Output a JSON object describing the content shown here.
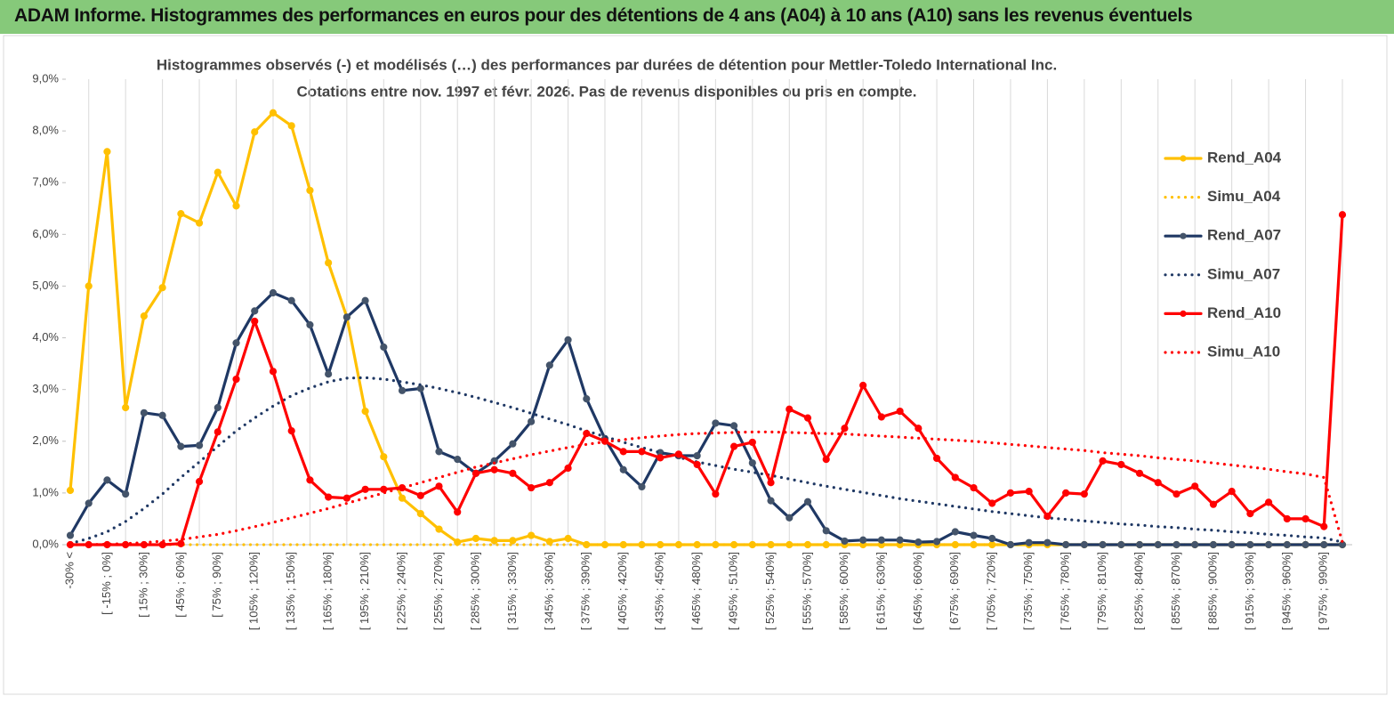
{
  "header": {
    "title": "ADAM Informe. Histogrammes des performances en euros pour des détentions de 4 ans (A04) à 10 ans (A10) sans les revenus éventuels"
  },
  "chart_data": {
    "type": "line",
    "title": "Histogrammes observés (-) et modélisés (…) des performances par durées de détention pour Mettler-Toledo International Inc.",
    "subtitle": "Cotations entre nov. 1997 et févr. 2026. Pas de revenus disponibles ou pris en compte.",
    "categories": [
      "-30% <",
      null,
      "[ -15% ; 0%]",
      null,
      "[ 15% ; 30%]",
      null,
      "[ 45% ; 60%]",
      null,
      "[ 75% ; 90%]",
      null,
      "[ 105% ; 120%]",
      null,
      "[ 135% ; 150%]",
      null,
      "[ 165% ; 180%]",
      null,
      "[ 195% ; 210%]",
      null,
      "[ 225% ; 240%]",
      null,
      "[ 255% ; 270%]",
      null,
      "[ 285% ; 300%]",
      null,
      "[ 315% ; 330%]",
      null,
      "[ 345% ; 360%]",
      null,
      "[ 375% ; 390%]",
      null,
      "[ 405% ; 420%]",
      null,
      "[ 435% ; 450%]",
      null,
      "[ 465% ; 480%]",
      null,
      "[ 495% ; 510%]",
      null,
      "[ 525% ; 540%]",
      null,
      "[ 555% ; 570%]",
      null,
      "[ 585% ; 600%]",
      null,
      "[ 615% ; 630%]",
      null,
      "[ 645% ; 660%]",
      null,
      "[ 675% ; 690%]",
      null,
      "[ 705% ; 720%]",
      null,
      "[ 735% ; 750%]",
      null,
      "[ 765% ; 780%]",
      null,
      "[ 795% ; 810%]",
      null,
      "[ 825% ; 840%]",
      null,
      "[ 855% ; 870%]",
      null,
      "[ 885% ; 900%]",
      null,
      "[ 915% ; 930%]",
      null,
      "[ 945% ; 960%]",
      null,
      "[ 975% ; 990%]",
      null
    ],
    "ylim": [
      0,
      9
    ],
    "yticks": [
      {
        "value": 0,
        "label": "0,0%"
      },
      {
        "value": 1,
        "label": "1,0%"
      },
      {
        "value": 2,
        "label": "2,0%"
      },
      {
        "value": 3,
        "label": "3,0%"
      },
      {
        "value": 4,
        "label": "4,0%"
      },
      {
        "value": 5,
        "label": "5,0%"
      },
      {
        "value": 6,
        "label": "6,0%"
      },
      {
        "value": 7,
        "label": "7,0%"
      },
      {
        "value": 8,
        "label": "8,0%"
      },
      {
        "value": 9,
        "label": "9,0%"
      }
    ],
    "grid": "x",
    "legend": "right",
    "series": [
      {
        "name": "Rend_A04",
        "color": "#ffc000",
        "marker_color": "#ffc000",
        "style": "solid",
        "markers": true,
        "values": [
          1.05,
          5.0,
          7.6,
          2.65,
          4.42,
          4.97,
          6.4,
          6.22,
          7.2,
          6.55,
          7.98,
          8.35,
          8.1,
          6.85,
          5.45,
          4.4,
          2.58,
          1.7,
          0.9,
          0.6,
          0.3,
          0.05,
          0.12,
          0.08,
          0.08,
          0.18,
          0.06,
          0.12,
          0,
          0,
          0,
          0,
          0,
          0,
          0,
          0,
          0,
          0,
          0,
          0,
          0,
          0,
          0,
          0,
          0,
          0,
          0,
          0,
          0,
          0,
          0,
          0,
          0,
          0,
          0,
          0,
          0,
          0,
          0,
          0,
          0,
          0,
          0,
          0,
          0,
          0,
          0,
          0,
          0,
          0
        ]
      },
      {
        "name": "Simu_A04",
        "color": "#ffc000",
        "style": "dotted",
        "markers": false,
        "values": [
          0,
          0,
          0,
          0,
          0,
          0,
          0,
          0,
          0,
          0,
          0,
          0,
          0,
          0,
          0,
          0,
          0,
          0,
          0,
          0,
          0,
          0,
          0,
          0,
          0,
          0,
          0,
          0,
          0,
          0,
          0,
          0,
          0,
          0,
          0,
          0,
          0,
          0,
          0,
          0,
          0,
          0,
          0,
          0,
          0,
          0,
          0,
          0,
          0,
          0,
          0,
          0,
          0,
          0,
          0,
          0,
          0,
          0,
          0,
          0,
          0,
          0,
          0,
          0,
          0,
          0,
          0,
          0,
          0,
          0
        ]
      },
      {
        "name": "Rend_A07",
        "color": "#1f3864",
        "marker_color": "#44546a",
        "style": "solid",
        "markers": true,
        "values": [
          0.18,
          0.8,
          1.25,
          0.98,
          2.55,
          2.5,
          1.9,
          1.92,
          2.65,
          3.9,
          4.52,
          4.87,
          4.72,
          4.25,
          3.3,
          4.4,
          4.72,
          3.82,
          2.98,
          3.02,
          1.8,
          1.65,
          1.38,
          1.62,
          1.95,
          2.38,
          3.47,
          3.96,
          2.82,
          2.05,
          1.45,
          1.12,
          1.78,
          1.72,
          1.72,
          2.35,
          2.3,
          1.58,
          0.85,
          0.52,
          0.83,
          0.27,
          0.07,
          0.09,
          0.09,
          0.09,
          0.05,
          0.06,
          0.25,
          0.18,
          0.12,
          0,
          0.04,
          0.04,
          0,
          0,
          0,
          0,
          0,
          0,
          0,
          0,
          0,
          0,
          0,
          0,
          0,
          0,
          0,
          0
        ]
      },
      {
        "name": "Simu_A07",
        "color": "#1f3864",
        "style": "dotted",
        "markers": false,
        "values": [
          0.02,
          0.12,
          0.25,
          0.45,
          0.7,
          0.98,
          1.3,
          1.6,
          1.9,
          2.2,
          2.45,
          2.68,
          2.88,
          3.03,
          3.15,
          3.22,
          3.23,
          3.2,
          3.15,
          3.09,
          3.02,
          2.94,
          2.85,
          2.75,
          2.65,
          2.54,
          2.43,
          2.32,
          2.2,
          2.09,
          1.98,
          1.88,
          1.78,
          1.69,
          1.6,
          1.53,
          1.46,
          1.4,
          1.34,
          1.27,
          1.2,
          1.13,
          1.07,
          1.01,
          0.95,
          0.89,
          0.84,
          0.79,
          0.74,
          0.69,
          0.64,
          0.6,
          0.56,
          0.52,
          0.49,
          0.46,
          0.43,
          0.4,
          0.38,
          0.35,
          0.33,
          0.3,
          0.28,
          0.25,
          0.23,
          0.2,
          0.18,
          0.15,
          0.13,
          0.05
        ]
      },
      {
        "name": "Rend_A10",
        "color": "#ff0000",
        "marker_color": "#ff0000",
        "style": "solid",
        "markers": true,
        "values": [
          0,
          0,
          0,
          0,
          0,
          0,
          0.02,
          1.22,
          2.18,
          3.2,
          4.32,
          3.35,
          2.2,
          1.25,
          0.92,
          0.9,
          1.07,
          1.07,
          1.1,
          0.95,
          1.13,
          0.63,
          1.38,
          1.45,
          1.38,
          1.1,
          1.2,
          1.48,
          2.15,
          2.0,
          1.8,
          1.8,
          1.68,
          1.75,
          1.55,
          0.98,
          1.9,
          1.98,
          1.2,
          2.62,
          2.45,
          1.65,
          2.25,
          3.08,
          2.47,
          2.58,
          2.25,
          1.67,
          1.3,
          1.1,
          0.8,
          1.0,
          1.03,
          0.55,
          1.0,
          0.98,
          1.62,
          1.55,
          1.38,
          1.2,
          0.98,
          1.13,
          0.78,
          1.03,
          0.6,
          0.82,
          0.5,
          0.5,
          0.35,
          6.38
        ]
      },
      {
        "name": "Simu_A10",
        "color": "#ff0000",
        "style": "dotted",
        "markers": false,
        "values": [
          0,
          0,
          0.01,
          0.02,
          0.04,
          0.07,
          0.1,
          0.15,
          0.2,
          0.27,
          0.35,
          0.43,
          0.52,
          0.61,
          0.7,
          0.8,
          0.9,
          1.0,
          1.1,
          1.2,
          1.3,
          1.4,
          1.5,
          1.58,
          1.66,
          1.74,
          1.81,
          1.88,
          1.94,
          1.99,
          2.03,
          2.07,
          2.1,
          2.13,
          2.15,
          2.16,
          2.17,
          2.18,
          2.18,
          2.17,
          2.16,
          2.15,
          2.14,
          2.12,
          2.1,
          2.08,
          2.06,
          2.04,
          2.02,
          2.0,
          1.97,
          1.94,
          1.91,
          1.88,
          1.85,
          1.82,
          1.78,
          1.75,
          1.72,
          1.68,
          1.65,
          1.62,
          1.58,
          1.54,
          1.5,
          1.46,
          1.41,
          1.37,
          1.3,
          0.05
        ]
      }
    ]
  }
}
